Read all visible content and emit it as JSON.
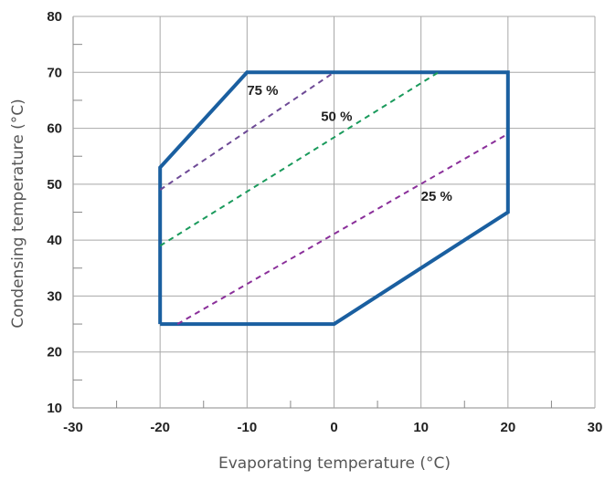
{
  "chart_data": {
    "type": "line",
    "title": "",
    "xlabel": "Evaporating temperature (°C)",
    "ylabel": "Condensing temperature (°C)",
    "xlim": [
      -30,
      30
    ],
    "ylim": [
      10,
      80
    ],
    "x_ticks": [
      -30,
      -20,
      -10,
      0,
      10,
      20,
      30
    ],
    "y_ticks": [
      10,
      20,
      30,
      40,
      50,
      60,
      70,
      80
    ],
    "grid": true,
    "series": [
      {
        "style": "solid",
        "color": "#1a5fa0",
        "points": [
          [
            -20,
            25
          ],
          [
            0,
            25
          ],
          [
            20,
            45
          ],
          [
            20,
            70
          ],
          [
            -10,
            70
          ],
          [
            -20,
            53
          ],
          [
            -20,
            25
          ]
        ]
      },
      {
        "name": "75 %",
        "style": "dashed",
        "color": "#6e4a96",
        "points": [
          [
            -20,
            49
          ],
          [
            0,
            70
          ]
        ]
      },
      {
        "name": "50 %",
        "style": "dashed",
        "color": "#1a9a5c",
        "points": [
          [
            -20,
            39
          ],
          [
            12,
            70
          ]
        ]
      },
      {
        "name": "25 %",
        "style": "dashed",
        "color": "#8a2f9a",
        "points": [
          [
            -18,
            25
          ],
          [
            20,
            59
          ]
        ]
      }
    ],
    "annotations": [
      {
        "text": "75 %",
        "x": -10,
        "y": 66
      },
      {
        "text": "50 %",
        "x": -1.5,
        "y": 61.3
      },
      {
        "text": "25 %",
        "x": 10,
        "y": 47
      }
    ]
  }
}
